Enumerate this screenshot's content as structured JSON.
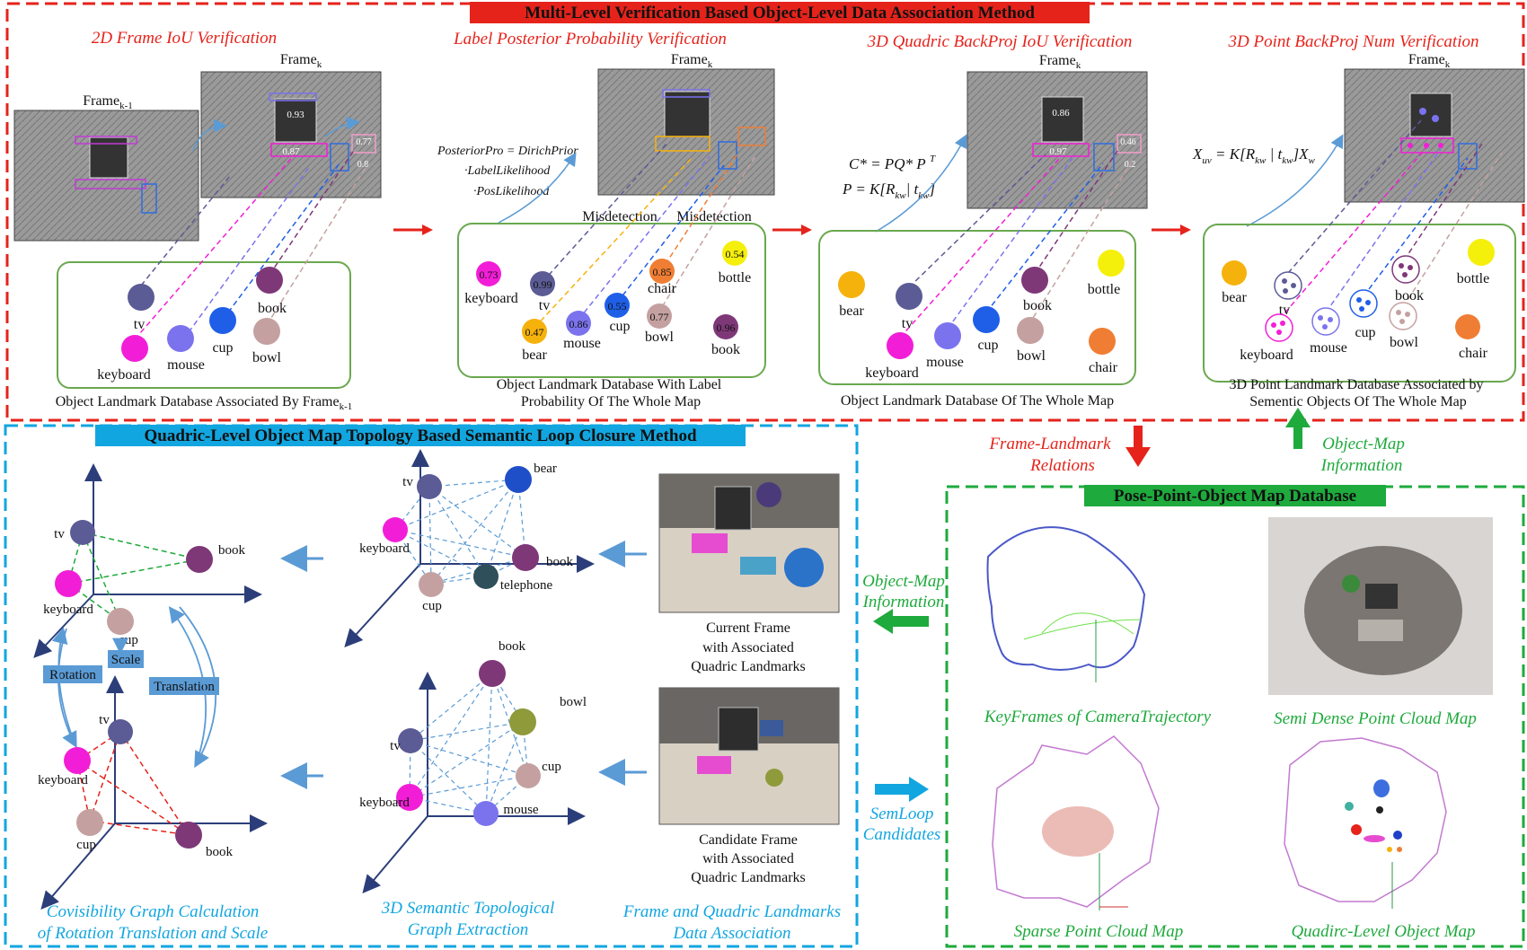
{
  "top_panel": {
    "title": "Multi-Level Verification Based Object-Level Data Association Method",
    "steps": [
      {
        "title": "2D Frame IoU Verification",
        "frame_prev": "Frame",
        "frame_prev_sub": "k-1",
        "frame": "Frame",
        "frame_sub": "k",
        "scores": [
          "0.93",
          "0.87",
          "0.77",
          "0.8"
        ],
        "caption": "Object Landmark Database Associated By Frame",
        "caption_sub": "k-1",
        "objects": [
          "tv",
          "book",
          "keyboard",
          "mouse",
          "cup",
          "bowl"
        ]
      },
      {
        "title": "Label Posterior Probability  Verification",
        "frame": "Frame",
        "frame_sub": "k",
        "formula": [
          "PosteriorPro = DirichPrior",
          "·LabelLikelihood",
          "·PosLikelihood"
        ],
        "misdetection": [
          "Misdetection",
          "Misdetection"
        ],
        "caption": [
          "Object Landmark Database With Label",
          "Probability Of The Whole Map"
        ],
        "objects": [
          {
            "label": "keyboard",
            "p": "0.73"
          },
          {
            "label": "tv",
            "p": "0.99"
          },
          {
            "label": "bear",
            "p": "0.47"
          },
          {
            "label": "mouse",
            "p": "0.86"
          },
          {
            "label": "cup",
            "p": "0.55"
          },
          {
            "label": "chair",
            "p": "0.85"
          },
          {
            "label": "bowl",
            "p": "0.77"
          },
          {
            "label": "bottle",
            "p": "0.54"
          },
          {
            "label": "book",
            "p": "0.96"
          }
        ]
      },
      {
        "title": "3D Quadric BackProj IoU Verification",
        "frame": "Frame",
        "frame_sub": "k",
        "scores": [
          "0.86",
          "0.97",
          "0.46",
          "0.2"
        ],
        "formula": [
          "C* = PQ* P",
          "P = K[R",
          "| t",
          "]"
        ],
        "caption": "Object Landmark Database Of The Whole Map",
        "objects": [
          "bear",
          "tv",
          "keyboard",
          "mouse",
          "cup",
          "book",
          "bowl",
          "bottle",
          "chair"
        ]
      },
      {
        "title": "3D Point BackProj Num Verification",
        "frame": "Frame",
        "frame_sub": "k",
        "formula": [
          "X",
          "uv",
          " = K[R",
          "kw",
          " | t",
          "kw",
          "]X",
          "w"
        ],
        "caption": [
          "3D Point Landmark Database Associated by",
          "Sementic Objects Of The Whole Map"
        ],
        "objects": [
          "bear",
          "tv",
          "keyboard",
          "mouse",
          "cup",
          "book",
          "bowl",
          "bottle",
          "chair"
        ]
      }
    ]
  },
  "links": {
    "frame_landmark": [
      "Frame-Landmark",
      "Relations"
    ],
    "object_map_up": [
      "Object-Map",
      "Information"
    ],
    "object_map_left": [
      "Object-Map",
      "Information"
    ],
    "semloop": [
      "SemLoop",
      "Candidates"
    ]
  },
  "loop_panel": {
    "title": "Quadric-Level Object Map Topology Based Semantic Loop Closure Method",
    "axes_labels": {
      "tv": "tv",
      "keyboard": "keyboard",
      "cup": "cup",
      "book": "book",
      "rotation": "Rotation",
      "scale": "Scale",
      "translation": "Translation"
    },
    "graph_top": [
      "tv",
      "bear",
      "keyboard",
      "book",
      "telephone",
      "cup"
    ],
    "graph_bottom": [
      "book",
      "bowl",
      "tv",
      "cup",
      "keyboard",
      "mouse"
    ],
    "current_caption": [
      "Current Frame",
      "with Associated",
      "Quadric Landmarks"
    ],
    "candidate_caption": [
      "Candidate Frame",
      "with Associated",
      "Quadric Landmarks"
    ],
    "bottom_labels": [
      [
        "Covisibility Graph Calculation",
        "of Rotation Translation and Scale"
      ],
      [
        "3D Semantic Topological",
        "Graph Extraction"
      ],
      [
        "Frame and Quadric Landmarks",
        "Data Association"
      ]
    ]
  },
  "database_panel": {
    "title": "Pose-Point-Object Map Database",
    "maps": [
      "KeyFrames of CameraTrajectory",
      "Semi Dense Point Cloud Map",
      "Sparse Point Cloud Map",
      "Quadirc-Level Object Map"
    ]
  },
  "colors": {
    "red": "#e5231b",
    "green": "#1eaa3c",
    "blue": "#12a6e0",
    "tv": "#5b5b95",
    "keyboard": "#f21ed7",
    "mouse": "#7b73ee",
    "cup": "#1f5fe8",
    "book": "#7e3878",
    "bowl": "#c4a1a0",
    "bear": "#f6b20c",
    "bottle": "#f5ef0c",
    "chair": "#ef7e34"
  }
}
